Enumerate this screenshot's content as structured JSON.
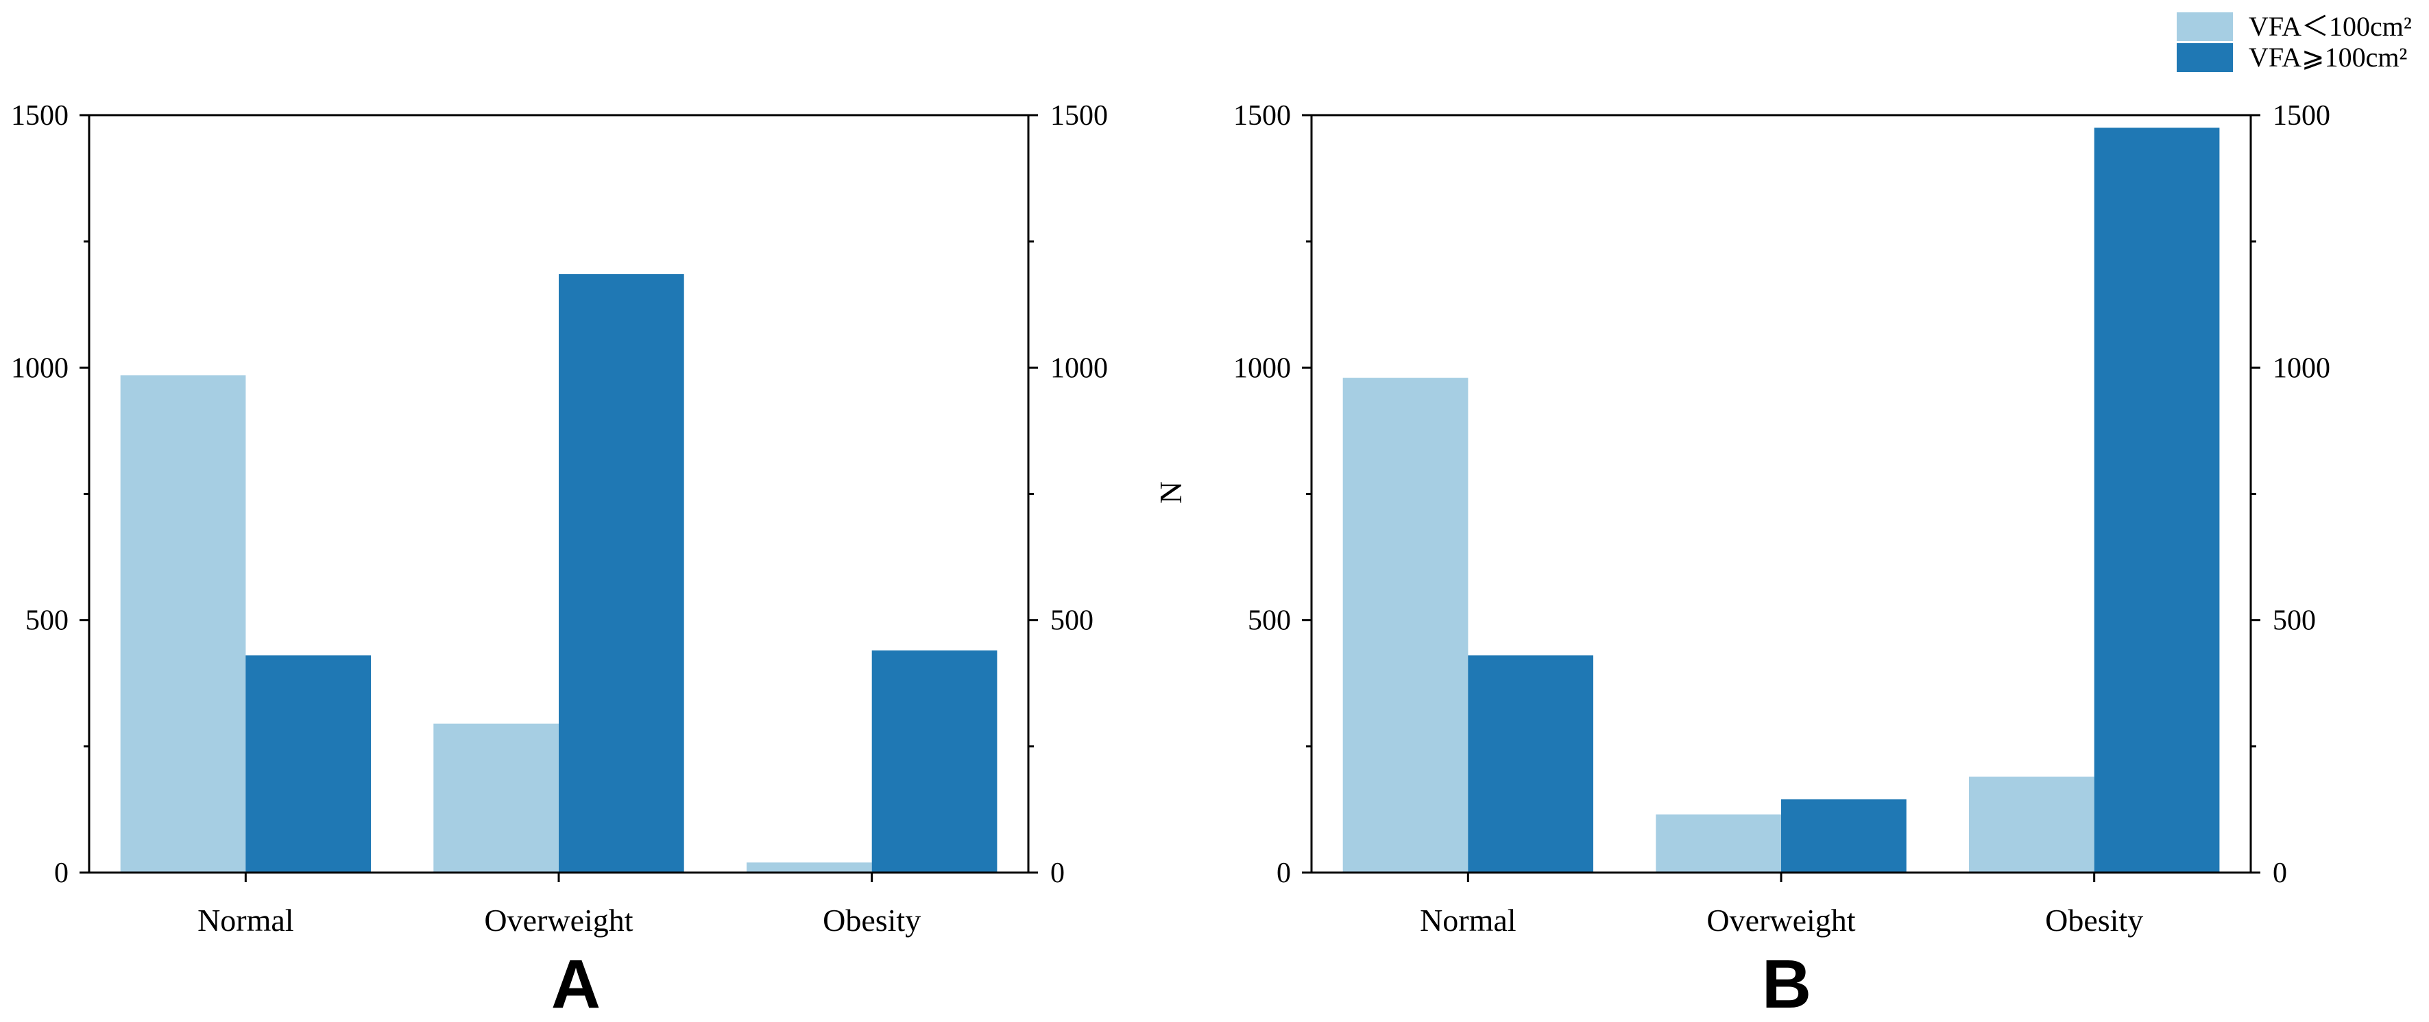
{
  "chart_data": [
    {
      "type": "bar",
      "panel": "A",
      "categories": [
        "Normal",
        "Overweight",
        "Obesity"
      ],
      "series": [
        {
          "name": "VFA＜100cm²",
          "values": [
            985,
            295,
            20
          ]
        },
        {
          "name": "VFA⩾100cm²",
          "values": [
            430,
            1185,
            440
          ]
        }
      ],
      "ylim": [
        0,
        1500
      ],
      "yticks": [
        0,
        500,
        1000,
        1500
      ],
      "ylabel": "",
      "xlabel": ""
    },
    {
      "type": "bar",
      "panel": "B",
      "categories": [
        "Normal",
        "Overweight",
        "Obesity"
      ],
      "series": [
        {
          "name": "VFA＜100cm²",
          "values": [
            980,
            115,
            190
          ]
        },
        {
          "name": "VFA⩾100cm²",
          "values": [
            430,
            145,
            1475
          ]
        }
      ],
      "ylim": [
        0,
        1500
      ],
      "yticks": [
        0,
        500,
        1000,
        1500
      ],
      "ylabel": "N",
      "xlabel": ""
    }
  ],
  "legend": {
    "placement": "top-right",
    "items": [
      {
        "label": "VFA＜100cm²",
        "color": "#a6cee3"
      },
      {
        "label": "VFA⩾100cm²",
        "color": "#1f78b4"
      }
    ]
  },
  "colors": {
    "light": "#a6cee3",
    "dark": "#1f78b4",
    "axis": "#000000"
  }
}
